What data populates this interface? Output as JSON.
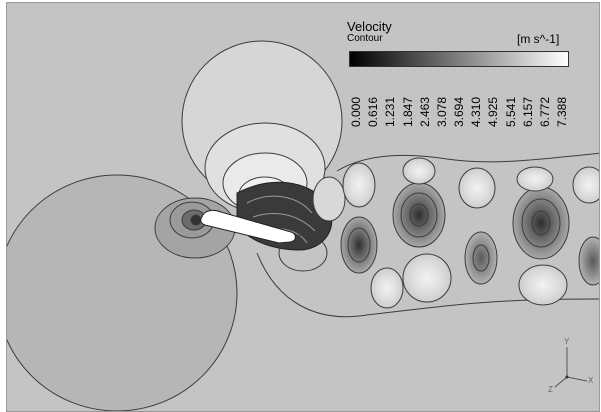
{
  "legend": {
    "title": "Velocity",
    "subtitle": "Contour",
    "units": "[m s^-1]",
    "ticks": [
      "0.000",
      "0.616",
      "1.231",
      "1.847",
      "2.463",
      "3.078",
      "3.694",
      "4.310",
      "4.925",
      "5.541",
      "6.157",
      "6.772",
      "7.388"
    ],
    "color_start": "#000000",
    "color_end": "#ffffff"
  },
  "background_color": "#c4c4c4",
  "contour_line_color": "#3c3c3c",
  "axis_triad": {
    "x_label": "X",
    "y_label": "Y",
    "z_label": "Z"
  }
}
